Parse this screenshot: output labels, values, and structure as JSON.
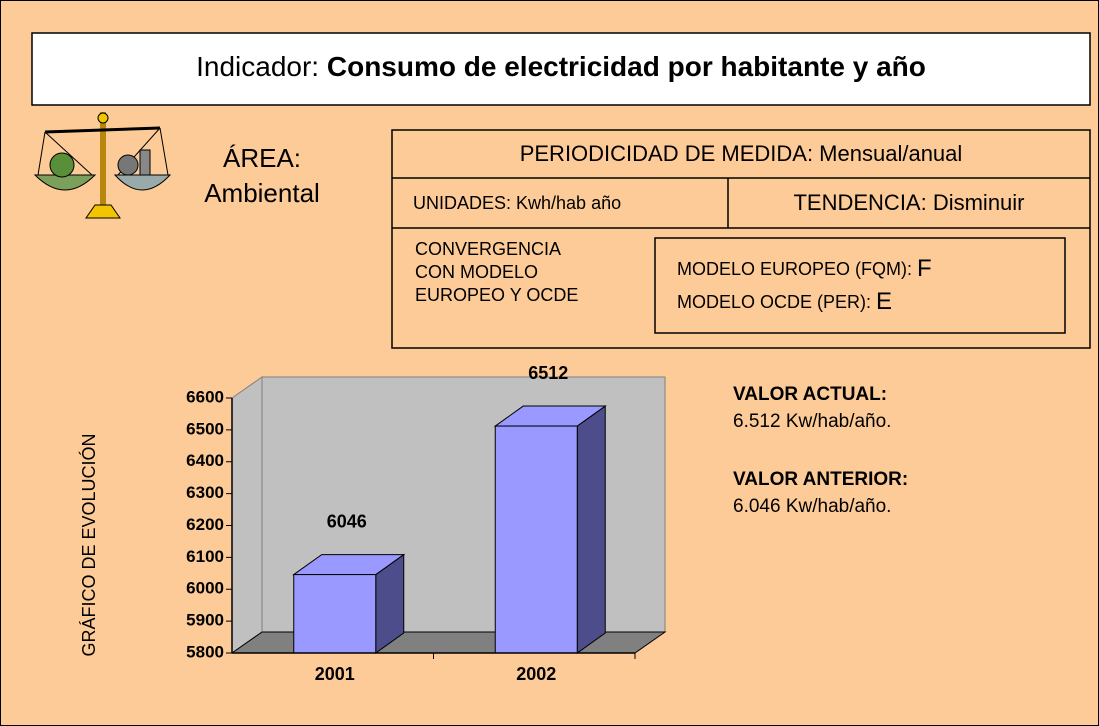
{
  "header": {
    "label": "Indicador:",
    "title": "Consumo de electricidad por habitante y año"
  },
  "area": {
    "label": "ÁREA:",
    "value": "Ambiental"
  },
  "info": {
    "periodicidad": "PERIODICIDAD DE MEDIDA: Mensual/anual",
    "unidades": "UNIDADES: Kwh/hab año",
    "tendencia": "TENDENCIA: Disminuir",
    "convergencia": [
      "CONVERGENCIA",
      "CON MODELO",
      "EUROPEO Y OCDE"
    ],
    "modelo_europeo": {
      "label": "MODELO EUROPEO (FQM):",
      "value": "F"
    },
    "modelo_ocde": {
      "label": "MODELO OCDE (PER):",
      "value": "E"
    }
  },
  "valores": {
    "actual_label": "VALOR ACTUAL:",
    "actual": "6.512 Kw/hab/año.",
    "anterior_label": "VALOR ANTERIOR:",
    "anterior": "6.046 Kw/hab/año."
  },
  "chart_data": {
    "type": "bar",
    "ylabel": "GRÁFICO DE EVOLUCIÓN",
    "categories": [
      "2001",
      "2002"
    ],
    "values": [
      6046,
      6512
    ],
    "color": "#9999ff",
    "ylim": [
      5800,
      6600
    ],
    "yticks": [
      5800,
      5900,
      6000,
      6100,
      6200,
      6300,
      6400,
      6500,
      6600
    ]
  }
}
